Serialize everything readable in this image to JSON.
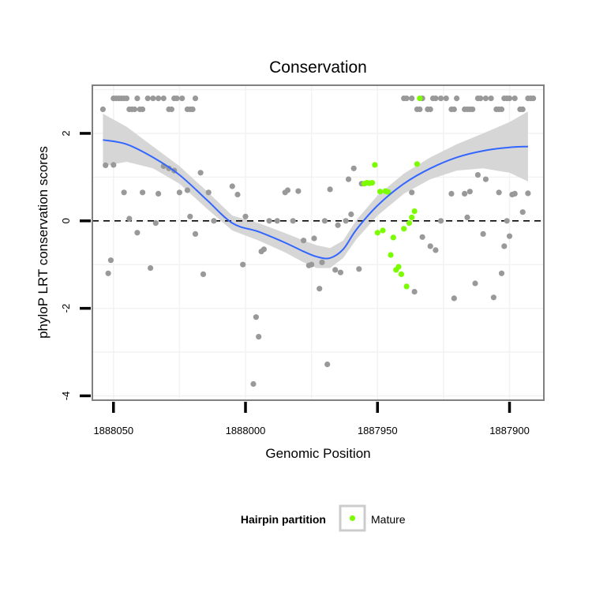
{
  "chart_data": {
    "type": "scatter",
    "title": "Conservation",
    "xlabel": "Genomic Position",
    "ylabel": "phyloP LRT conservation scores",
    "x_reversed": true,
    "xlim": [
      1888058,
      1887887
    ],
    "ylim": [
      -4.1,
      3.1
    ],
    "x_ticks": [
      {
        "value": 1888050,
        "label": "1888050"
      },
      {
        "value": 1888000,
        "label": "1888000"
      },
      {
        "value": 1887950,
        "label": "1887950"
      },
      {
        "value": 1887900,
        "label": "1887900"
      }
    ],
    "y_ticks": [
      {
        "value": 2,
        "label": "2"
      },
      {
        "value": 0,
        "label": "0"
      },
      {
        "value": -2,
        "label": "-2"
      },
      {
        "value": -4,
        "label": "-4"
      }
    ],
    "reference_line": {
      "y": 0,
      "style": "dashed"
    },
    "legend": {
      "title": "Hairpin partition",
      "entries": [
        "Mature"
      ],
      "position": "bottom"
    },
    "colors": {
      "other": "#999999",
      "mature": "#7cfc00",
      "smooth": "#3366ff",
      "ribbon": "#d4d4d4",
      "panel_border": "#808080",
      "grid": "#f2f2f2"
    },
    "series": [
      {
        "name": "Other",
        "color": "#999999",
        "points": [
          [
            1888050,
            2.8
          ],
          [
            1888049,
            2.8
          ],
          [
            1888048,
            2.8
          ],
          [
            1888047,
            2.8
          ],
          [
            1888046,
            2.8
          ],
          [
            1888045,
            2.8
          ],
          [
            1888044,
            2.55
          ],
          [
            1888043,
            2.55
          ],
          [
            1888042,
            2.55
          ],
          [
            1888041,
            2.8
          ],
          [
            1888040,
            2.55
          ],
          [
            1888039,
            2.55
          ],
          [
            1888037,
            2.8
          ],
          [
            1888035,
            2.8
          ],
          [
            1888033,
            2.8
          ],
          [
            1888031,
            2.8
          ],
          [
            1888029,
            2.55
          ],
          [
            1888028,
            2.55
          ],
          [
            1888027,
            2.8
          ],
          [
            1888026,
            2.8
          ],
          [
            1888024,
            2.8
          ],
          [
            1888022,
            2.55
          ],
          [
            1888021,
            2.55
          ],
          [
            1888020,
            2.55
          ],
          [
            1888019,
            2.8
          ],
          [
            1887940,
            2.8
          ],
          [
            1887939,
            2.8
          ],
          [
            1887937,
            2.8
          ],
          [
            1887935,
            2.55
          ],
          [
            1887934,
            2.55
          ],
          [
            1887933,
            2.8
          ],
          [
            1887931,
            2.55
          ],
          [
            1887930,
            2.55
          ],
          [
            1887929,
            2.8
          ],
          [
            1887928,
            2.8
          ],
          [
            1887926,
            2.8
          ],
          [
            1887924,
            2.8
          ],
          [
            1887922,
            2.55
          ],
          [
            1887921,
            2.55
          ],
          [
            1887920,
            2.8
          ],
          [
            1887917,
            2.55
          ],
          [
            1887916,
            2.55
          ],
          [
            1887915,
            2.55
          ],
          [
            1887914,
            2.55
          ],
          [
            1887912,
            2.8
          ],
          [
            1887911,
            2.8
          ],
          [
            1887909,
            2.8
          ],
          [
            1887907,
            2.8
          ],
          [
            1887905,
            2.55
          ],
          [
            1887904,
            2.55
          ],
          [
            1887903,
            2.55
          ],
          [
            1887902,
            2.8
          ],
          [
            1887901,
            2.8
          ],
          [
            1887900,
            2.8
          ],
          [
            1887898,
            2.8
          ],
          [
            1887896,
            2.55
          ],
          [
            1887895,
            2.55
          ],
          [
            1887893,
            2.8
          ],
          [
            1887892,
            2.8
          ],
          [
            1887891,
            2.8
          ],
          [
            1888054,
            2.55
          ],
          [
            1888053,
            1.27
          ],
          [
            1888052,
            -1.2
          ],
          [
            1888051,
            -0.9
          ],
          [
            1888050,
            1.28
          ],
          [
            1888046,
            0.65
          ],
          [
            1888044,
            0.05
          ],
          [
            1888041,
            -0.27
          ],
          [
            1888039,
            0.65
          ],
          [
            1888036,
            -1.08
          ],
          [
            1888034,
            -0.05
          ],
          [
            1888033,
            0.62
          ],
          [
            1888031,
            1.25
          ],
          [
            1888029,
            1.2
          ],
          [
            1888027,
            1.15
          ],
          [
            1888025,
            0.65
          ],
          [
            1888022,
            0.7
          ],
          [
            1888021,
            0.1
          ],
          [
            1888019,
            -0.3
          ],
          [
            1888017,
            1.1
          ],
          [
            1888016,
            -1.22
          ],
          [
            1888014,
            0.65
          ],
          [
            1888012,
            0.0
          ],
          [
            1888005,
            0.79
          ],
          [
            1888003,
            0.6
          ],
          [
            1888001,
            -1.0
          ],
          [
            1888000,
            0.1
          ],
          [
            1887997,
            -3.73
          ],
          [
            1887996,
            -2.2
          ],
          [
            1887995,
            -2.65
          ],
          [
            1887994,
            -0.7
          ],
          [
            1887993,
            -0.65
          ],
          [
            1887991,
            0.0
          ],
          [
            1887988,
            0.0
          ],
          [
            1887985,
            0.65
          ],
          [
            1887984,
            0.7
          ],
          [
            1887982,
            0.0
          ],
          [
            1887980,
            0.68
          ],
          [
            1887978,
            -0.45
          ],
          [
            1887976,
            -1.02
          ],
          [
            1887975,
            -1.0
          ],
          [
            1887974,
            -0.4
          ],
          [
            1887972,
            -1.55
          ],
          [
            1887971,
            -0.95
          ],
          [
            1887970,
            0.0
          ],
          [
            1887969,
            -3.28
          ],
          [
            1887968,
            0.72
          ],
          [
            1887966,
            -1.12
          ],
          [
            1887965,
            -0.1
          ],
          [
            1887964,
            -1.18
          ],
          [
            1887962,
            0.0
          ],
          [
            1887961,
            0.95
          ],
          [
            1887960,
            0.15
          ],
          [
            1887959,
            1.2
          ],
          [
            1887957,
            -1.1
          ],
          [
            1887956,
            0.85
          ],
          [
            1887937,
            0.65
          ],
          [
            1887936,
            -1.62
          ],
          [
            1887933,
            -0.37
          ],
          [
            1887930,
            -0.58
          ],
          [
            1887928,
            -0.67
          ],
          [
            1887926,
            0.0
          ],
          [
            1887922,
            0.62
          ],
          [
            1887921,
            -1.77
          ],
          [
            1887917,
            0.62
          ],
          [
            1887916,
            0.08
          ],
          [
            1887915,
            0.67
          ],
          [
            1887913,
            -1.43
          ],
          [
            1887912,
            1.05
          ],
          [
            1887910,
            -0.3
          ],
          [
            1887909,
            0.95
          ],
          [
            1887906,
            -1.75
          ],
          [
            1887904,
            0.65
          ],
          [
            1887903,
            -1.2
          ],
          [
            1887902,
            -0.58
          ],
          [
            1887901,
            0.0
          ],
          [
            1887900,
            -0.35
          ],
          [
            1887899,
            0.6
          ],
          [
            1887898,
            0.62
          ],
          [
            1887895,
            0.2
          ],
          [
            1887893,
            0.63
          ]
        ]
      },
      {
        "name": "Mature",
        "color": "#7cfc00",
        "points": [
          [
            1887955,
            0.85
          ],
          [
            1887954,
            0.87
          ],
          [
            1887953,
            0.86
          ],
          [
            1887952,
            0.87
          ],
          [
            1887951,
            1.28
          ],
          [
            1887950,
            -0.27
          ],
          [
            1887949,
            0.67
          ],
          [
            1887948,
            -0.22
          ],
          [
            1887947,
            0.68
          ],
          [
            1887946,
            0.66
          ],
          [
            1887945,
            -0.78
          ],
          [
            1887944,
            -0.38
          ],
          [
            1887943,
            -1.12
          ],
          [
            1887942,
            -1.05
          ],
          [
            1887941,
            -1.22
          ],
          [
            1887940,
            -0.18
          ],
          [
            1887939,
            -1.5
          ],
          [
            1887938,
            -0.05
          ],
          [
            1887937,
            0.08
          ],
          [
            1887936,
            0.22
          ],
          [
            1887935,
            1.3
          ],
          [
            1887934,
            2.8
          ]
        ]
      }
    ],
    "smooth": {
      "method": "loess",
      "x": [
        1888054,
        1888045,
        1888035,
        1888025,
        1888015,
        1888005,
        1887995,
        1887985,
        1887978,
        1887973,
        1887968,
        1887963,
        1887958,
        1887950,
        1887940,
        1887930,
        1887920,
        1887910,
        1887900,
        1887893
      ],
      "y": [
        1.85,
        1.75,
        1.45,
        1.05,
        0.5,
        -0.05,
        -0.25,
        -0.5,
        -0.7,
        -0.82,
        -0.85,
        -0.65,
        -0.2,
        0.35,
        0.85,
        1.2,
        1.45,
        1.6,
        1.68,
        1.7
      ],
      "lower": [
        1.25,
        1.35,
        1.2,
        0.85,
        0.3,
        -0.22,
        -0.45,
        -0.72,
        -0.95,
        -1.08,
        -1.08,
        -0.85,
        -0.42,
        0.12,
        0.62,
        0.95,
        1.15,
        1.2,
        1.1,
        0.9
      ],
      "upper": [
        2.45,
        2.15,
        1.7,
        1.25,
        0.7,
        0.12,
        -0.05,
        -0.28,
        -0.45,
        -0.56,
        -0.62,
        -0.45,
        0.02,
        0.58,
        1.08,
        1.45,
        1.75,
        2.0,
        2.26,
        2.5
      ]
    }
  }
}
